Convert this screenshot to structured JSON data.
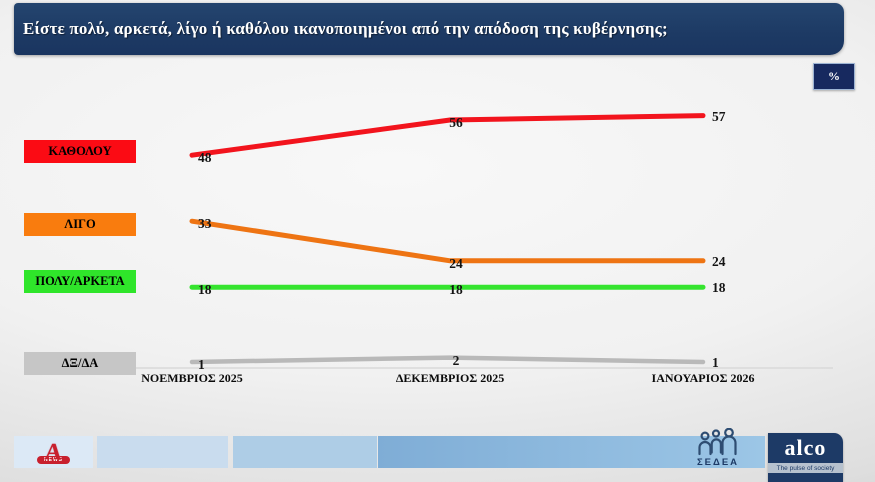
{
  "title": "Είστε πολύ, αρκετά, λίγο ή καθόλου ικανοποιημένοι από την απόδοση της κυβέρνησης;",
  "percent_badge": "%",
  "colors": {
    "title_bar_navy": "#1d3a64",
    "badge_navy": "#17295f"
  },
  "chart_data": {
    "type": "line",
    "categories": [
      "ΝΟΕΜΒΡΙΟΣ 2025",
      "ΔΕΚΕΜΒΡΙΟΣ 2025",
      "ΙΑΝΟΥΑΡΙΟΣ 2026"
    ],
    "series": [
      {
        "name": "ΚΑΘΟΛΟΥ",
        "values": [
          48,
          56,
          57
        ],
        "color": "#f2141d",
        "legend_bg": "#fb0b14"
      },
      {
        "name": "ΛΙΓΟ",
        "values": [
          33,
          24,
          24
        ],
        "color": "#ee7413",
        "legend_bg": "#f97c0e"
      },
      {
        "name": "ΠΟΛΥ/ΑΡΚΕΤΑ",
        "values": [
          18,
          18,
          18
        ],
        "color": "#35e42e",
        "legend_bg": "#2fe52a"
      },
      {
        "name": "ΔΞ/ΔΑ",
        "values": [
          1,
          2,
          1
        ],
        "color": "#b9b9b9",
        "legend_bg": "#c6c6c6"
      }
    ],
    "unit": "%",
    "ylim": [
      0,
      62
    ],
    "grid": false,
    "legend_position": "left",
    "title": "Είστε πολύ, αρκετά, λίγο ή καθόλου ικανοποιημένοι από την απόδοση της κυβέρνησης;"
  },
  "footer": {
    "alpha_news": {
      "a_glyph": "A",
      "label": "NEWS"
    },
    "sedea": {
      "label": "ΣΕΔΕΑ"
    },
    "alco": {
      "label": "alco",
      "tagline": "The pulse of society"
    }
  }
}
